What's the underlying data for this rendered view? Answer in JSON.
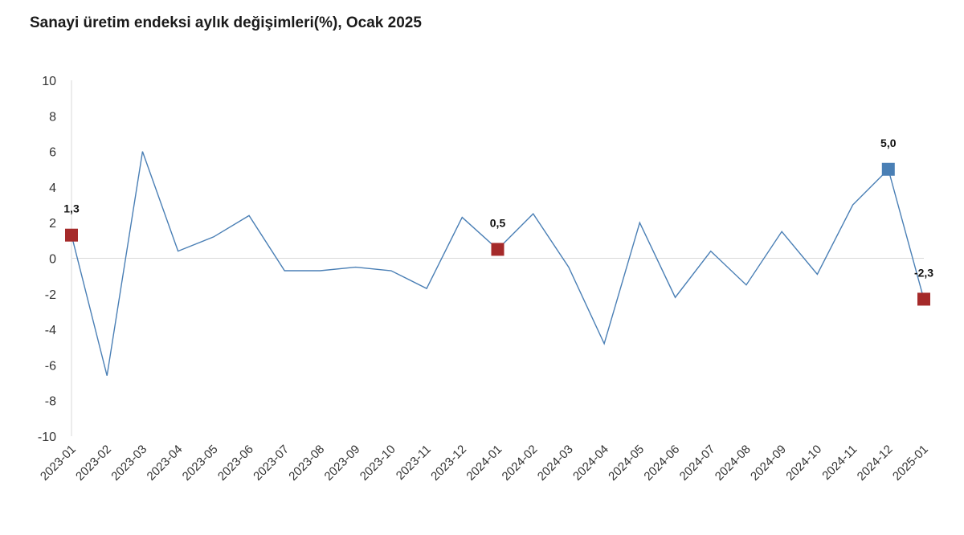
{
  "chart_data": {
    "type": "line",
    "title": "Sanayi üretim endeksi aylık değişimleri(%), Ocak 2025",
    "xlabel": "",
    "ylabel": "",
    "ylim": [
      -10,
      10
    ],
    "yticks": [
      10,
      8,
      6,
      4,
      2,
      0,
      -2,
      -4,
      -6,
      -8,
      -10
    ],
    "grid": false,
    "categories": [
      "2023-01",
      "2023-02",
      "2023-03",
      "2023-04",
      "2023-05",
      "2023-06",
      "2023-07",
      "2023-08",
      "2023-09",
      "2023-10",
      "2023-11",
      "2023-12",
      "2024-01",
      "2024-02",
      "2024-03",
      "2024-04",
      "2024-05",
      "2024-06",
      "2024-07",
      "2024-08",
      "2024-09",
      "2024-10",
      "2024-11",
      "2024-12",
      "2025-01"
    ],
    "series": [
      {
        "values": [
          1.3,
          -6.6,
          6.0,
          0.4,
          1.2,
          2.4,
          -0.7,
          -0.7,
          -0.5,
          -0.7,
          -1.7,
          2.3,
          0.5,
          2.5,
          -0.5,
          -4.8,
          2.0,
          -2.2,
          0.4,
          -1.5,
          1.5,
          -0.9,
          3.0,
          5.0,
          -2.3
        ],
        "color": "#4a7fb5"
      }
    ],
    "highlights": [
      {
        "index": 0,
        "label": "1,3",
        "color": "#a52a2a"
      },
      {
        "index": 12,
        "label": "0,5",
        "color": "#a52a2a"
      },
      {
        "index": 23,
        "label": "5,0",
        "color": "#4a7fb5"
      },
      {
        "index": 24,
        "label": "-2,3",
        "color": "#a52a2a"
      }
    ]
  }
}
